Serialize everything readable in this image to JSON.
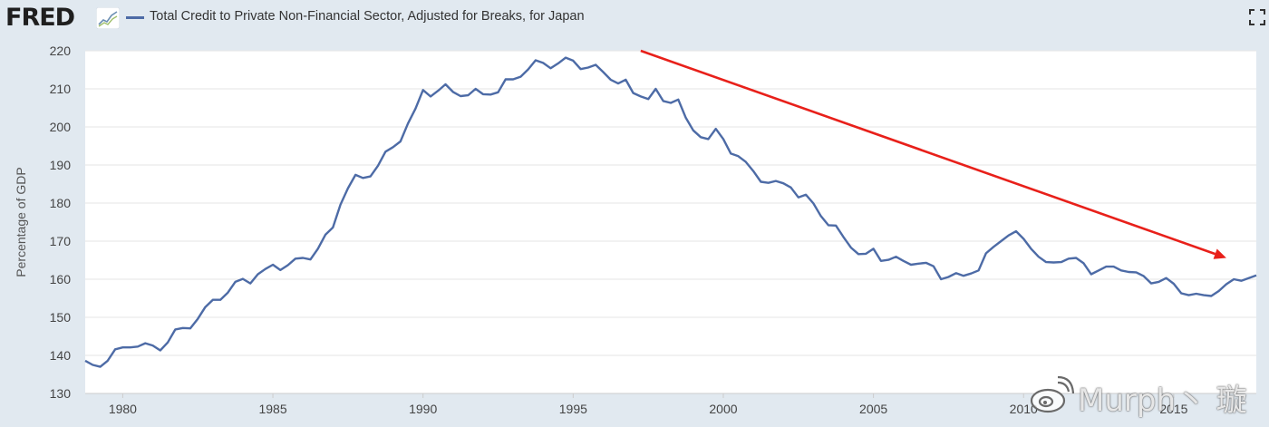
{
  "header": {
    "logo": "FRED",
    "logo_icon": "line-graph-icon",
    "title": "Total Credit to Private Non-Financial Sector, Adjusted for Breaks, for Japan",
    "fullscreen_icon": "fullscreen-icon"
  },
  "colors": {
    "series": "#4d6ba6",
    "arrow": "#e8201a",
    "background": "#e1e9f0",
    "plot": "#ffffff",
    "grid": "#e6e6e6"
  },
  "watermark": {
    "text": "Murph丶 璇",
    "icon": "weibo-icon"
  },
  "chart_data": {
    "type": "line",
    "title": "Total Credit to Private Non-Financial Sector, Adjusted for Breaks, for Japan",
    "xlabel": "",
    "ylabel": "Percentage of GDP",
    "xlim": [
      1978.75,
      2017.75
    ],
    "ylim": [
      130,
      220
    ],
    "yticks": [
      130,
      140,
      150,
      160,
      170,
      180,
      190,
      200,
      210,
      220
    ],
    "xticks": [
      1980,
      1985,
      1990,
      1995,
      2000,
      2005,
      2010,
      2015
    ],
    "grid": true,
    "legend": "top-left",
    "series": [
      {
        "name": "Total Credit to Private Non-Financial Sector, Adjusted for Breaks, for Japan",
        "x": [
          1978.75,
          1979.0,
          1979.25,
          1979.5,
          1979.75,
          1980.0,
          1980.25,
          1980.5,
          1980.75,
          1981.0,
          1981.25,
          1981.5,
          1981.75,
          1982.0,
          1982.25,
          1982.5,
          1982.75,
          1983.0,
          1983.25,
          1983.5,
          1983.75,
          1984.0,
          1984.25,
          1984.5,
          1984.75,
          1985.0,
          1985.25,
          1985.5,
          1985.75,
          1986.0,
          1986.25,
          1986.5,
          1986.75,
          1987.0,
          1987.25,
          1987.5,
          1987.75,
          1988.0,
          1988.25,
          1988.5,
          1988.75,
          1989.0,
          1989.25,
          1989.5,
          1989.75,
          1990.0,
          1990.25,
          1990.5,
          1990.75,
          1991.0,
          1991.25,
          1991.5,
          1991.75,
          1992.0,
          1992.25,
          1992.5,
          1992.75,
          1993.0,
          1993.25,
          1993.5,
          1993.75,
          1994.0,
          1994.25,
          1994.5,
          1994.75,
          1995.0,
          1995.25,
          1995.5,
          1995.75,
          1996.0,
          1996.25,
          1996.5,
          1996.75,
          1997.0,
          1997.25,
          1997.5,
          1997.75,
          1998.0,
          1998.25,
          1998.5,
          1998.75,
          1999.0,
          1999.25,
          1999.5,
          1999.75,
          2000.0,
          2000.25,
          2000.5,
          2000.75,
          2001.0,
          2001.25,
          2001.5,
          2001.75,
          2002.0,
          2002.25,
          2002.5,
          2002.75,
          2003.0,
          2003.25,
          2003.5,
          2003.75,
          2004.0,
          2004.25,
          2004.5,
          2004.75,
          2005.0,
          2005.25,
          2005.5,
          2005.75,
          2006.0,
          2006.25,
          2006.5,
          2006.75,
          2007.0,
          2007.25,
          2007.5,
          2007.75,
          2008.0,
          2008.25,
          2008.5,
          2008.75,
          2009.0,
          2009.25,
          2009.5,
          2009.75,
          2010.0,
          2010.25,
          2010.5,
          2010.75,
          2011.0,
          2011.25,
          2011.5,
          2011.75,
          2012.0,
          2012.25,
          2012.5,
          2012.75,
          2013.0,
          2013.25,
          2013.5,
          2013.75,
          2014.0,
          2014.25,
          2014.5,
          2014.75,
          2015.0,
          2015.25,
          2015.5,
          2015.75,
          2016.0,
          2016.25,
          2016.5,
          2016.75,
          2017.0,
          2017.25,
          2017.5,
          2017.75
        ],
        "values": [
          138.6,
          137.5,
          137.0,
          138.6,
          141.6,
          142.1,
          142.1,
          142.3,
          143.2,
          142.6,
          141.3,
          143.4,
          146.8,
          147.2,
          147.1,
          149.6,
          152.7,
          154.6,
          154.6,
          156.5,
          159.3,
          160.1,
          158.9,
          161.3,
          162.7,
          163.8,
          162.4,
          163.7,
          165.4,
          165.6,
          165.2,
          168.0,
          171.7,
          173.6,
          179.6,
          183.9,
          187.4,
          186.6,
          187.0,
          189.8,
          193.5,
          194.7,
          196.2,
          200.9,
          204.8,
          209.7,
          208.0,
          209.5,
          211.2,
          209.2,
          208.1,
          208.3,
          210.0,
          208.6,
          208.5,
          209.1,
          212.5,
          212.5,
          213.2,
          215.1,
          217.5,
          216.8,
          215.4,
          216.7,
          218.2,
          217.4,
          215.2,
          215.6,
          216.3,
          214.4,
          212.4,
          211.4,
          212.4,
          208.9,
          208.0,
          207.3,
          210.0,
          206.8,
          206.3,
          207.2,
          202.4,
          199.1,
          197.3,
          196.8,
          199.5,
          196.8,
          193.0,
          192.3,
          190.8,
          188.4,
          185.6,
          185.3,
          185.8,
          185.2,
          184.1,
          181.5,
          182.2,
          179.9,
          176.6,
          174.2,
          174.1,
          171.1,
          168.3,
          166.6,
          166.7,
          168.0,
          164.8,
          165.1,
          165.9,
          164.8,
          163.8,
          164.1,
          164.3,
          163.4,
          160.0,
          160.6,
          161.6,
          160.9,
          161.5,
          162.3,
          166.8,
          168.5,
          170.0,
          171.5,
          172.6,
          170.6,
          168.0,
          165.9,
          164.5,
          164.4,
          164.5,
          165.4,
          165.6,
          164.2,
          161.3,
          162.3,
          163.3,
          163.3,
          162.3,
          161.9,
          161.8,
          160.8,
          158.9,
          159.3,
          160.3,
          158.8,
          156.3,
          155.8,
          156.2,
          155.8,
          155.6,
          156.9,
          158.7,
          160.0,
          159.6,
          160.3,
          161.0
        ]
      }
    ],
    "annotations": [
      {
        "type": "arrow",
        "from": [
          1997.25,
          220.0
        ],
        "to": [
          2016.75,
          165.6
        ],
        "color": "#e8201a"
      }
    ]
  }
}
